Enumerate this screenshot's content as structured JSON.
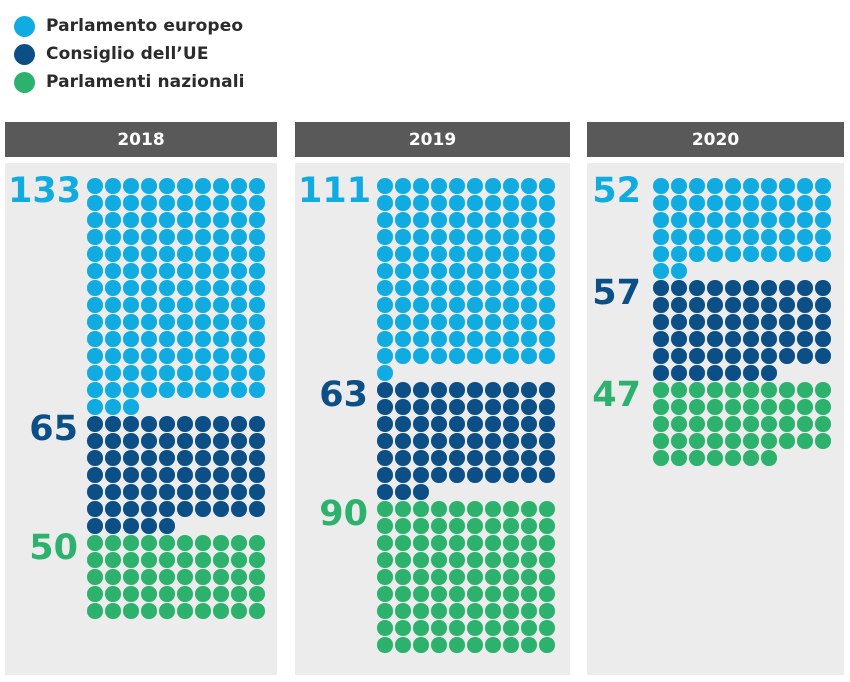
{
  "colors": {
    "parlamento_europeo": "#10ABE0",
    "consiglio_ue": "#0B4F86",
    "parlamenti_nazionali": "#2DB26D"
  },
  "legend": [
    {
      "label": "Parlamento europeo",
      "key": "parlamento_europeo"
    },
    {
      "label": "Consiglio dell’UE",
      "key": "consiglio_ue"
    },
    {
      "label": "Parlamenti nazionali",
      "key": "parlamenti_nazionali"
    }
  ],
  "chart_data": {
    "type": "waffle",
    "title": "",
    "units_per_dot": 1,
    "columns_per_row": 10,
    "categories": [
      "2018",
      "2019",
      "2020"
    ],
    "series": [
      {
        "name": "Parlamento europeo",
        "key": "parlamento_europeo",
        "values": [
          133,
          111,
          52
        ]
      },
      {
        "name": "Consiglio dell’UE",
        "key": "consiglio_ue",
        "values": [
          65,
          63,
          57
        ]
      },
      {
        "name": "Parlamenti nazionali",
        "key": "parlamenti_nazionali",
        "values": [
          50,
          90,
          47
        ]
      }
    ],
    "panels": [
      {
        "year": "2018",
        "counts": {
          "parlamento_europeo": "133",
          "consiglio_ue": "65",
          "parlamenti_nazionali": "50"
        }
      },
      {
        "year": "2019",
        "counts": {
          "parlamento_europeo": "111",
          "consiglio_ue": "63",
          "parlamenti_nazionali": "90"
        }
      },
      {
        "year": "2020",
        "counts": {
          "parlamento_europeo": "52",
          "consiglio_ue": "57",
          "parlamenti_nazionali": "47"
        }
      }
    ],
    "legend_position": "top-left"
  }
}
